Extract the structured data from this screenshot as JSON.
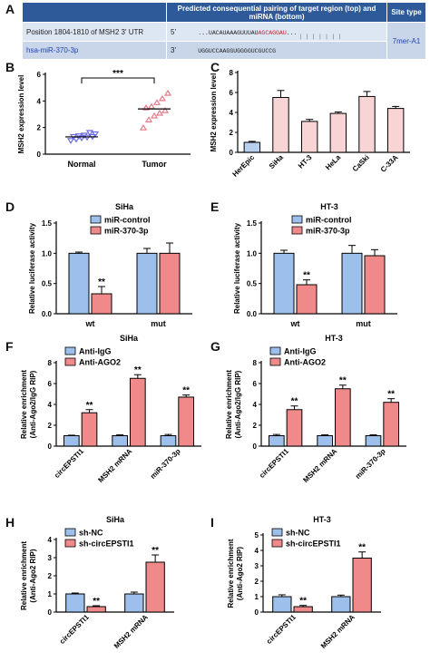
{
  "panel_letters": {
    "a": "A",
    "b": "B",
    "c": "C",
    "d": "D",
    "e": "E",
    "f": "F",
    "g": "G",
    "h": "H",
    "i": "I"
  },
  "table_a": {
    "header_pairing": "Predicted consequential pairing of target region (top) and miRNA (bottom)",
    "header_site": "Site type",
    "row1_label": "Position 1804-1810 of MSH2 3' UTR",
    "row1_end": "5'",
    "row1_seq_pre": "...UACAUAAAGUUUAU",
    "row1_seq_hl": "AGCAGGAU",
    "row1_seq_post": "...",
    "pairing_marks": "| | | | | | |",
    "row2_label": "hsa-miR-370-3p",
    "row2_end": "3'",
    "row2_seq_pre": "UGGUCCAAGGUGGG",
    "row2_seq_hl": "GUCGUCCG",
    "site_type": "7mer-A1"
  },
  "chart_data": [
    {
      "id": "B",
      "type": "scatter",
      "ylabel": "MSH2 expression level",
      "ylim": [
        0,
        6
      ],
      "yticks": [
        0,
        2,
        4,
        6
      ],
      "categories": [
        "Normal",
        "Tumor"
      ],
      "significance": "***",
      "series": [
        {
          "name": "Normal",
          "color": "#6a6ae0",
          "marker": "triangle-down",
          "values": [
            1.0,
            1.1,
            1.2,
            1.25,
            1.3,
            1.3,
            1.35,
            1.4,
            1.6,
            1.5
          ],
          "mean": 1.3
        },
        {
          "name": "Tumor",
          "color": "#e87a8a",
          "marker": "triangle-up",
          "values": [
            2.0,
            2.6,
            2.9,
            3.1,
            3.3,
            3.5,
            3.6,
            3.9,
            4.2,
            4.6
          ],
          "mean": 3.4
        }
      ]
    },
    {
      "id": "C",
      "type": "bar",
      "ylabel": "MSH2 expression level",
      "ylim": [
        0,
        8
      ],
      "yticks": [
        0,
        2,
        4,
        6,
        8
      ],
      "categories": [
        "HerEpic",
        "SiHa",
        "HT-3",
        "HeLa",
        "CaSki",
        "C-33A"
      ],
      "values": [
        1.0,
        5.5,
        3.1,
        3.9,
        5.6,
        4.4
      ],
      "errors": [
        0.1,
        0.7,
        0.2,
        0.15,
        0.5,
        0.2
      ],
      "colors": [
        "#b7d0ee",
        "#f8d4d4",
        "#f8d4d4",
        "#f8d4d4",
        "#f8d4d4",
        "#f8d4d4"
      ]
    },
    {
      "id": "D",
      "type": "bar",
      "title": "SiHa",
      "ylabel": "Relative luciferase activity",
      "ylim": [
        0,
        1.5
      ],
      "yticks": [
        0.0,
        0.5,
        1.0,
        1.5
      ],
      "tick_decimals": 1,
      "categories": [
        "wt",
        "mut"
      ],
      "series": [
        {
          "name": "miR-control",
          "color": "#9dbfeb",
          "values": [
            1.0,
            1.0
          ],
          "errors": [
            0.02,
            0.08
          ]
        },
        {
          "name": "miR-370-3p",
          "color": "#f08a8a",
          "values": [
            0.33,
            1.0
          ],
          "errors": [
            0.12,
            0.17
          ]
        }
      ],
      "annotations": [
        {
          "category": 0,
          "series": 1,
          "text": "**"
        }
      ]
    },
    {
      "id": "E",
      "type": "bar",
      "title": "HT-3",
      "ylabel": "Relative luciferase activity",
      "ylim": [
        0,
        1.5
      ],
      "yticks": [
        0.0,
        0.5,
        1.0,
        1.5
      ],
      "tick_decimals": 1,
      "categories": [
        "wt",
        "mut"
      ],
      "series": [
        {
          "name": "miR-control",
          "color": "#9dbfeb",
          "values": [
            1.0,
            1.0
          ],
          "errors": [
            0.05,
            0.13
          ]
        },
        {
          "name": "miR-370-3p",
          "color": "#f08a8a",
          "values": [
            0.48,
            0.96
          ],
          "errors": [
            0.08,
            0.1
          ]
        }
      ],
      "annotations": [
        {
          "category": 0,
          "series": 1,
          "text": "**"
        }
      ]
    },
    {
      "id": "F",
      "type": "bar",
      "title": "SiHa",
      "ylabel": "Relative enrichment (Anti-Ago2/IgG RIP)",
      "ylim": [
        0,
        8
      ],
      "yticks": [
        0,
        2,
        4,
        6,
        8
      ],
      "categories": [
        "circEPSTI1",
        "MSH2 mRNA",
        "miR-370-3p"
      ],
      "series": [
        {
          "name": "Anti-IgG",
          "color": "#9dbfeb",
          "values": [
            1.0,
            1.0,
            1.0
          ],
          "errors": [
            0.05,
            0.08,
            0.12
          ]
        },
        {
          "name": "Anti-AGO2",
          "color": "#f08a8a",
          "values": [
            3.2,
            6.5,
            4.7
          ],
          "errors": [
            0.3,
            0.35,
            0.2
          ]
        }
      ],
      "annotations": [
        {
          "category": 0,
          "series": 1,
          "text": "**"
        },
        {
          "category": 1,
          "series": 1,
          "text": "**"
        },
        {
          "category": 2,
          "series": 1,
          "text": "**"
        }
      ]
    },
    {
      "id": "G",
      "type": "bar",
      "title": "HT-3",
      "ylabel": "Relative enrichment (Anti-Ago2/IgG RIP)",
      "ylim": [
        0,
        8
      ],
      "yticks": [
        0,
        2,
        4,
        6,
        8
      ],
      "categories": [
        "circEPSTI1",
        "MSH2 mRNA",
        "miR-370-3p"
      ],
      "series": [
        {
          "name": "Anti-IgG",
          "color": "#9dbfeb",
          "values": [
            1.0,
            1.0,
            1.0
          ],
          "errors": [
            0.12,
            0.08,
            0.08
          ]
        },
        {
          "name": "Anti-AGO2",
          "color": "#f08a8a",
          "values": [
            3.5,
            5.5,
            4.2
          ],
          "errors": [
            0.35,
            0.35,
            0.35
          ]
        }
      ],
      "annotations": [
        {
          "category": 0,
          "series": 1,
          "text": "**"
        },
        {
          "category": 1,
          "series": 1,
          "text": "**"
        },
        {
          "category": 2,
          "series": 1,
          "text": "**"
        }
      ]
    },
    {
      "id": "H",
      "type": "bar",
      "title": "SiHa",
      "ylabel": "Relative enrichment (Anti-Ago2 RIP)",
      "ylim": [
        0,
        4
      ],
      "yticks": [
        0,
        1,
        2,
        3,
        4
      ],
      "categories": [
        "circEPSTI1",
        "MSH2 mRNA"
      ],
      "series": [
        {
          "name": "sh-NC",
          "color": "#9dbfeb",
          "values": [
            1.0,
            1.0
          ],
          "errors": [
            0.05,
            0.1
          ]
        },
        {
          "name": "sh-circEPSTI1",
          "color": "#f08a8a",
          "values": [
            0.3,
            2.75
          ],
          "errors": [
            0.05,
            0.4
          ]
        }
      ],
      "annotations": [
        {
          "category": 0,
          "series": 1,
          "text": "**"
        },
        {
          "category": 1,
          "series": 1,
          "text": "**"
        }
      ]
    },
    {
      "id": "I",
      "type": "bar",
      "title": "HT-3",
      "ylabel": "Relative enrichment (Anti-Ago2 RIP)",
      "ylim": [
        0,
        5
      ],
      "yticks": [
        0,
        1,
        2,
        3,
        4,
        5
      ],
      "categories": [
        "circEPSTI1",
        "MSH2 mRNA"
      ],
      "series": [
        {
          "name": "sh-NC",
          "color": "#9dbfeb",
          "values": [
            1.0,
            1.0
          ],
          "errors": [
            0.12,
            0.1
          ]
        },
        {
          "name": "sh-circEPSTI1",
          "color": "#f08a8a",
          "values": [
            0.35,
            3.5
          ],
          "errors": [
            0.08,
            0.4
          ]
        }
      ],
      "annotations": [
        {
          "category": 0,
          "series": 1,
          "text": "**"
        },
        {
          "category": 1,
          "series": 1,
          "text": "**"
        }
      ]
    }
  ]
}
